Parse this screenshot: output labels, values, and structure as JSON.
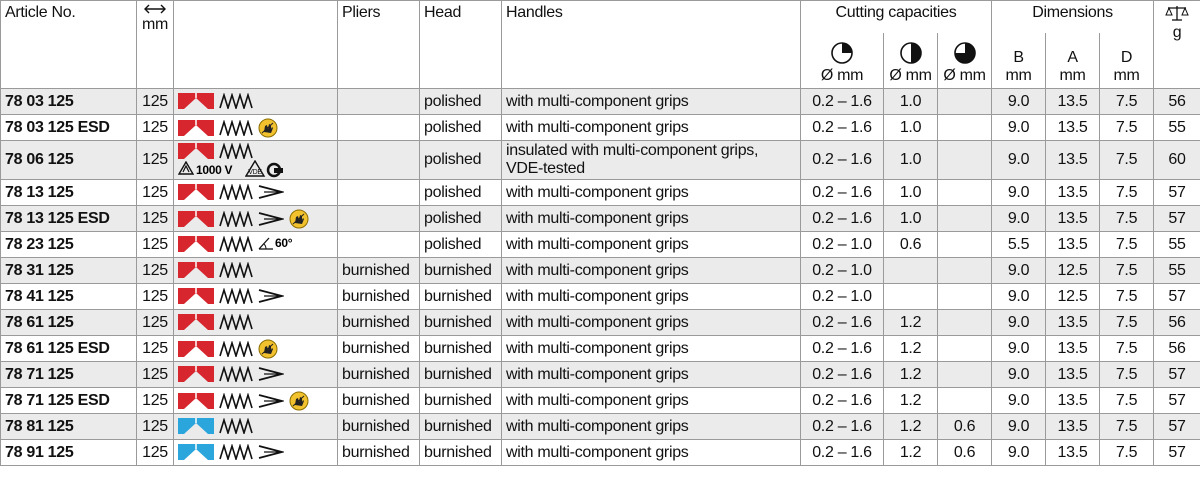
{
  "header": {
    "cutting_capacities": "Cutting capacities",
    "dimensions": "Dimensions",
    "article": "Article No.",
    "length": "mm",
    "pliers": "Pliers",
    "head": "Head",
    "handles": "Handles",
    "cap_soft": "Ø mm",
    "cap_medium": "Ø mm",
    "cap_hard": "Ø mm",
    "b": "B",
    "b_unit": "mm",
    "a": "A",
    "a_unit": "mm",
    "d": "D",
    "d_unit": "mm",
    "weight": "g"
  },
  "table": {
    "rows": [
      {
        "article": "78 03 125",
        "length": "125",
        "head": "polished",
        "handles": "with multi-component grips",
        "cap_soft": "0.2 – 1.6",
        "cap_medium": "1.0",
        "b": "9.0",
        "a": "13.5",
        "d": "7.5",
        "weight": "56"
      },
      {
        "article": "78 03 125 ESD",
        "length": "125",
        "head": "polished",
        "handles": "with multi-component grips",
        "cap_soft": "0.2 – 1.6",
        "cap_medium": "1.0",
        "b": "9.0",
        "a": "13.5",
        "d": "7.5",
        "weight": "55"
      },
      {
        "article": "78 06 125",
        "length": "125",
        "icon_label": "1000 V",
        "head": "polished",
        "handles": [
          "insulated with multi-component grips,",
          "VDE-tested"
        ],
        "cap_soft": "0.2 – 1.6",
        "cap_medium": "1.0",
        "b": "9.0",
        "a": "13.5",
        "d": "7.5",
        "weight": "60"
      },
      {
        "article": "78 13 125",
        "length": "125",
        "head": "polished",
        "handles": "with multi-component grips",
        "cap_soft": "0.2 – 1.6",
        "cap_medium": "1.0",
        "b": "9.0",
        "a": "13.5",
        "d": "7.5",
        "weight": "57"
      },
      {
        "article": "78 13 125 ESD",
        "length": "125",
        "head": "polished",
        "handles": "with multi-component grips",
        "cap_soft": "0.2 – 1.6",
        "cap_medium": "1.0",
        "b": "9.0",
        "a": "13.5",
        "d": "7.5",
        "weight": "57"
      },
      {
        "article": "78 23 125",
        "length": "125",
        "icon_label": "60°",
        "head": "polished",
        "handles": "with multi-component grips",
        "cap_soft": "0.2 – 1.0",
        "cap_medium": "0.6",
        "b": "5.5",
        "a": "13.5",
        "d": "7.5",
        "weight": "55"
      },
      {
        "article": "78 31 125",
        "length": "125",
        "pliers": "burnished",
        "head": "burnished",
        "handles": "with multi-component grips",
        "cap_soft": "0.2 – 1.0",
        "b": "9.0",
        "a": "12.5",
        "d": "7.5",
        "weight": "55"
      },
      {
        "article": "78 41 125",
        "length": "125",
        "pliers": "burnished",
        "head": "burnished",
        "handles": "with multi-component grips",
        "cap_soft": "0.2 – 1.0",
        "b": "9.0",
        "a": "12.5",
        "d": "7.5",
        "weight": "57"
      },
      {
        "article": "78 61 125",
        "length": "125",
        "pliers": "burnished",
        "head": "burnished",
        "handles": "with multi-component grips",
        "cap_soft": "0.2 – 1.6",
        "cap_medium": "1.2",
        "b": "9.0",
        "a": "13.5",
        "d": "7.5",
        "weight": "56"
      },
      {
        "article": "78 61 125 ESD",
        "length": "125",
        "pliers": "burnished",
        "head": "burnished",
        "handles": "with multi-component grips",
        "cap_soft": "0.2 – 1.6",
        "cap_medium": "1.2",
        "b": "9.0",
        "a": "13.5",
        "d": "7.5",
        "weight": "56"
      },
      {
        "article": "78 71 125",
        "length": "125",
        "pliers": "burnished",
        "head": "burnished",
        "handles": "with multi-component grips",
        "cap_soft": "0.2 – 1.6",
        "cap_medium": "1.2",
        "b": "9.0",
        "a": "13.5",
        "d": "7.5",
        "weight": "57"
      },
      {
        "article": "78 71 125 ESD",
        "length": "125",
        "pliers": "burnished",
        "head": "burnished",
        "handles": "with multi-component grips",
        "cap_soft": "0.2 – 1.6",
        "cap_medium": "1.2",
        "b": "9.0",
        "a": "13.5",
        "d": "7.5",
        "weight": "57"
      },
      {
        "article": "78 81 125",
        "length": "125",
        "pliers": "burnished",
        "head": "burnished",
        "handles": "with multi-component grips",
        "cap_soft": "0.2 – 1.6",
        "cap_medium": "1.2",
        "cap_hard": "0.6",
        "b": "9.0",
        "a": "13.5",
        "d": "7.5",
        "weight": "57"
      },
      {
        "article": "78 91 125",
        "length": "125",
        "pliers": "burnished",
        "head": "burnished",
        "handles": "with multi-component grips",
        "cap_soft": "0.2 – 1.6",
        "cap_medium": "1.2",
        "cap_hard": "0.6",
        "b": "9.0",
        "a": "13.5",
        "d": "7.5",
        "weight": "57"
      }
    ]
  }
}
